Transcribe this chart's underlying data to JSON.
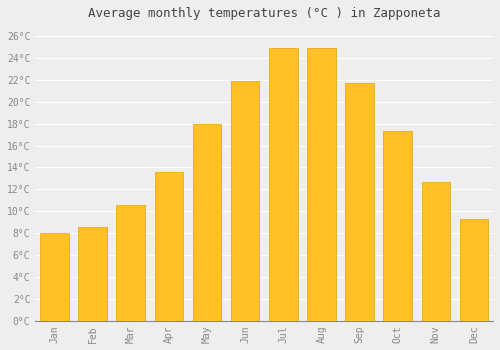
{
  "title": "Average monthly temperatures (°C ) in Zapponeta",
  "months": [
    "Jan",
    "Feb",
    "Mar",
    "Apr",
    "May",
    "Jun",
    "Jul",
    "Aug",
    "Sep",
    "Oct",
    "Nov",
    "Dec"
  ],
  "temperatures": [
    8.0,
    8.6,
    10.6,
    13.6,
    18.0,
    21.9,
    24.9,
    24.9,
    21.7,
    17.3,
    12.7,
    9.3
  ],
  "bar_color": "#FFC125",
  "bar_edge_color": "#E8A000",
  "background_color": "#EEEEEE",
  "plot_bg_color": "#EEEEEE",
  "grid_color": "#FFFFFF",
  "title_fontsize": 9,
  "tick_label_color": "#888888",
  "tick_label_fontsize": 7,
  "ylim": [
    0,
    27
  ],
  "ytick_step": 2
}
